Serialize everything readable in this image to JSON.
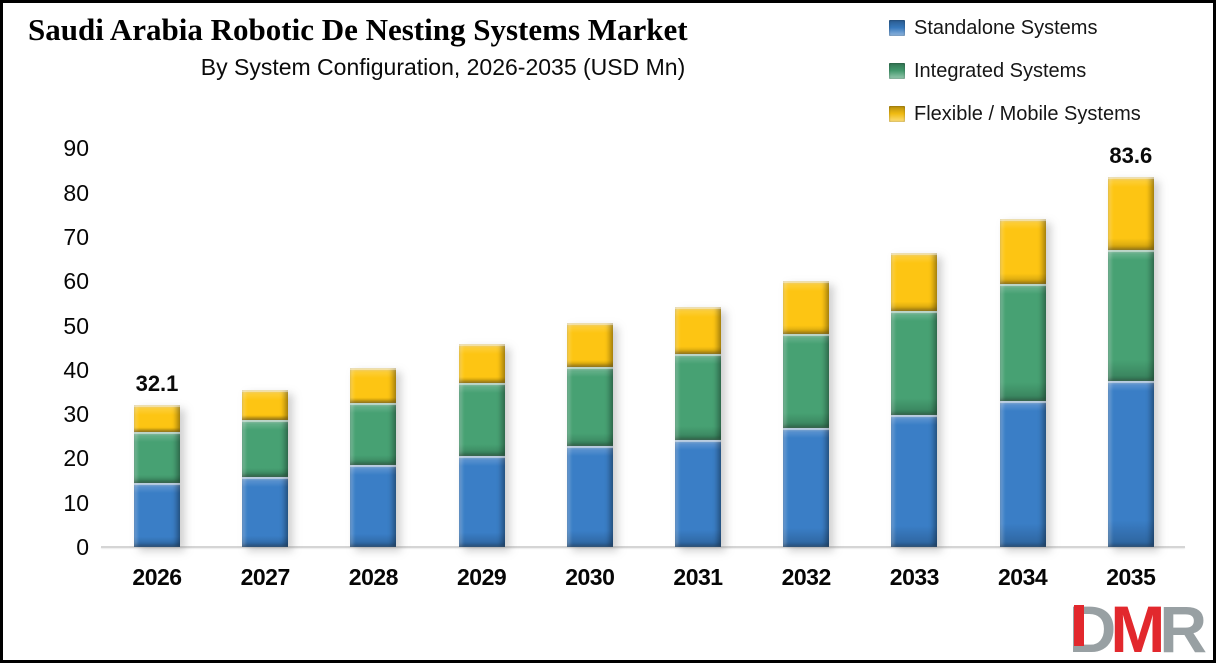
{
  "header": {
    "title": "Saudi Arabia Robotic De Nesting Systems Market",
    "subtitle": "By System Configuration, 2026-2035 (USD Mn)"
  },
  "legend": {
    "items": [
      {
        "label": "Standalone Systems",
        "color": "#3a7ec6"
      },
      {
        "label": "Integrated Systems",
        "color": "#47a173"
      },
      {
        "label": "Flexible / Mobile Systems",
        "color": "#fdc513"
      }
    ]
  },
  "logo": {
    "letters": [
      {
        "char": "D",
        "color": "#98a0a3",
        "accent": "red-stem"
      },
      {
        "char": "M",
        "color": "#e2282d"
      },
      {
        "char": "R",
        "color": "#98a0a3"
      }
    ]
  },
  "chart_data": {
    "type": "bar",
    "stacked": true,
    "title": "Saudi Arabia Robotic De Nesting Systems Market",
    "subtitle": "By System Configuration, 2026-2035 (USD Mn)",
    "unit": "USD Mn",
    "categories": [
      "2026",
      "2027",
      "2028",
      "2029",
      "2030",
      "2031",
      "2032",
      "2033",
      "2034",
      "2035"
    ],
    "series": [
      {
        "name": "Standalone Systems",
        "color": "#3a7ec6",
        "values": [
          14.4,
          15.9,
          18.5,
          20.5,
          22.8,
          24.2,
          26.9,
          29.9,
          32.9,
          37.5
        ]
      },
      {
        "name": "Integrated Systems",
        "color": "#47a173",
        "values": [
          11.6,
          12.7,
          13.9,
          16.5,
          17.8,
          19.3,
          21.2,
          23.3,
          26.5,
          29.6
        ]
      },
      {
        "name": "Flexible / Mobile Systems",
        "color": "#fdc513",
        "values": [
          6.1,
          6.8,
          8.0,
          8.9,
          10.0,
          10.6,
          12.0,
          13.1,
          14.7,
          16.5
        ]
      }
    ],
    "data_labels": [
      {
        "category": "2026",
        "text": "32.1"
      },
      {
        "category": "2035",
        "text": "83.6"
      }
    ],
    "ylim": [
      0,
      90
    ],
    "yticks": [
      0,
      10,
      20,
      30,
      40,
      50,
      60,
      70,
      80,
      90
    ],
    "grid": false,
    "legend_position": "top-right"
  }
}
